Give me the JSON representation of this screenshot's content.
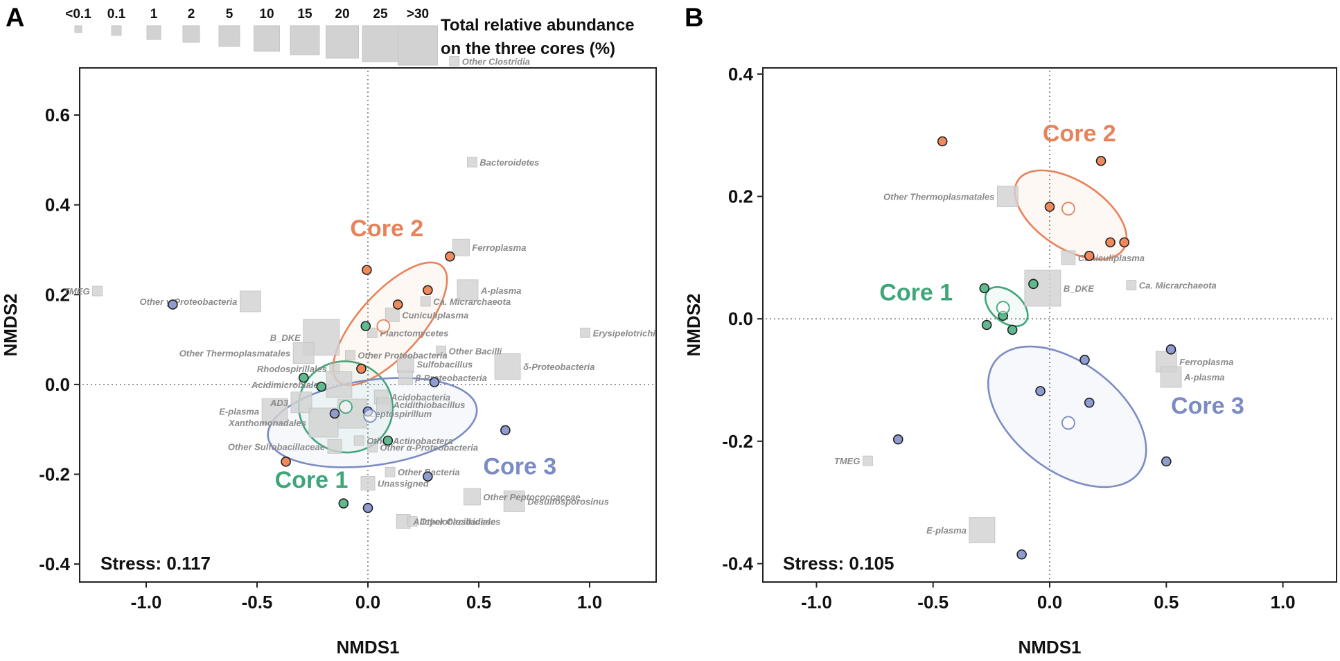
{
  "colors": {
    "core1": "#3fa679",
    "core2": "#e8825a",
    "core3": "#7b8cc4",
    "core1_dot": "#5fbb8f",
    "core2_dot": "#f08a5d",
    "core3_dot": "#8f9ccf",
    "taxon_box": "#d2d2d2",
    "taxon_text": "#8a8a8a"
  },
  "legend": {
    "title_line1": "Total relative abundance",
    "title_line2": "on the three cores (%)",
    "categories": [
      "<0.1",
      "0.1",
      "1",
      "2",
      "5",
      "10",
      "15",
      "20",
      "25",
      ">30"
    ]
  },
  "panels": [
    {
      "letter": "A",
      "stress_label": "Stress: 0.117",
      "xlabel": "NMDS1",
      "ylabel": "NMDS2",
      "xlim": [
        -1.3,
        1.3
      ],
      "ylim": [
        -0.44,
        0.705
      ],
      "xticks": [
        -1.0,
        -0.5,
        0.0,
        0.5,
        1.0
      ],
      "xtick_labels": [
        "-1.0",
        "-0.5",
        "0.0",
        "0.5",
        "1.0"
      ],
      "yticks": [
        0.6,
        0.4,
        0.2,
        0.0,
        -0.2,
        -0.4
      ],
      "ytick_labels": [
        "0.6",
        "0.4",
        "0.2",
        "0.0",
        "-0.2",
        "-0.4"
      ]
    },
    {
      "letter": "B",
      "stress_label": "Stress: 0.105",
      "xlabel": "NMDS1",
      "ylabel": "NMDS2",
      "xlim": [
        -1.23,
        1.23
      ],
      "ylim": [
        -0.43,
        0.41
      ],
      "xticks": [
        -1.0,
        -0.5,
        0.0,
        0.5,
        1.0
      ],
      "xtick_labels": [
        "-1.0",
        "-0.5",
        "0.0",
        "0.5",
        "1.0"
      ],
      "yticks": [
        0.4,
        0.2,
        0.0,
        -0.2,
        -0.4
      ],
      "ytick_labels": [
        "0.4",
        "0.2",
        "0.0",
        "-0.2",
        "-0.4"
      ]
    }
  ],
  "chart_data": [
    {
      "type": "scatter",
      "title": "A",
      "xlabel": "NMDS1",
      "ylabel": "NMDS2",
      "xlim": [
        -1.3,
        1.3
      ],
      "ylim": [
        -0.44,
        0.705
      ],
      "stress": 0.117,
      "cores": [
        {
          "name": "Core 1",
          "color_key": "core1",
          "samples": [
            [
              -0.29,
              0.015
            ],
            [
              -0.21,
              -0.005
            ],
            [
              -0.01,
              0.13
            ],
            [
              0.09,
              -0.125
            ],
            [
              -0.11,
              -0.265
            ]
          ],
          "centroid": [
            -0.1,
            -0.05
          ],
          "ellipse": {
            "cx": -0.1,
            "cy": -0.05,
            "rx": 0.205,
            "ry": 0.105,
            "angle_deg": 72
          },
          "label_pos": [
            -0.42,
            -0.23
          ]
        },
        {
          "name": "Core 2",
          "color_key": "core2",
          "samples": [
            [
              -0.005,
              0.255
            ],
            [
              0.37,
              0.285
            ],
            [
              0.27,
              0.21
            ],
            [
              0.135,
              0.178
            ],
            [
              -0.03,
              0.035
            ],
            [
              -0.37,
              -0.172
            ]
          ],
          "centroid": [
            0.07,
            0.13
          ],
          "ellipse": {
            "cx": 0.1,
            "cy": 0.135,
            "rx": 0.35,
            "ry": 0.07,
            "angle_deg": 48
          },
          "label_pos": [
            -0.08,
            0.33
          ]
        },
        {
          "name": "Core 3",
          "color_key": "core3",
          "samples": [
            [
              -0.88,
              0.178
            ],
            [
              -0.15,
              -0.065
            ],
            [
              0.0,
              -0.06
            ],
            [
              0.3,
              0.005
            ],
            [
              0.62,
              -0.102
            ],
            [
              0.27,
              -0.205
            ],
            [
              0.0,
              -0.275
            ]
          ],
          "centroid": [
            0.01,
            -0.07
          ],
          "ellipse": {
            "cx": 0.02,
            "cy": -0.085,
            "rx": 0.475,
            "ry": 0.095,
            "angle_deg": 8
          },
          "label_pos": [
            0.52,
            -0.2
          ]
        }
      ],
      "taxa": [
        {
          "name": "Other Clostridia",
          "x": 0.39,
          "y": 0.72,
          "size": "0.1"
        },
        {
          "name": "Bacteroidetes",
          "x": 0.47,
          "y": 0.495,
          "size": "0.1"
        },
        {
          "name": "Ferroplasma",
          "x": 0.42,
          "y": 0.305,
          "size": "2"
        },
        {
          "name": "A-plasma",
          "x": 0.45,
          "y": 0.21,
          "size": "5"
        },
        {
          "name": "Ca. Micrarchaeota",
          "x": 0.26,
          "y": 0.185,
          "size": "0.1"
        },
        {
          "name": "Cuniculiplasma",
          "x": 0.11,
          "y": 0.155,
          "size": "1"
        },
        {
          "name": "Planctomycetes",
          "x": 0.02,
          "y": 0.115,
          "size": "0.1"
        },
        {
          "name": "Erysipelotrichi",
          "x": 0.98,
          "y": 0.115,
          "size": "0.1"
        },
        {
          "name": "TMEG",
          "x": -1.22,
          "y": 0.208,
          "size": "0.1"
        },
        {
          "name": "Other γ-Proteobacteria",
          "x": -0.53,
          "y": 0.185,
          "size": "5"
        },
        {
          "name": "B_DKE",
          "x": -0.21,
          "y": 0.105,
          "size": "25"
        },
        {
          "name": "Other Thermoplasmatales",
          "x": -0.29,
          "y": 0.07,
          "size": "5"
        },
        {
          "name": "Other Bacilli",
          "x": 0.33,
          "y": 0.075,
          "size": "0.1"
        },
        {
          "name": "Other Proteobacteria",
          "x": -0.08,
          "y": 0.065,
          "size": "0.1"
        },
        {
          "name": "Sulfobacillus",
          "x": 0.17,
          "y": 0.045,
          "size": "2"
        },
        {
          "name": "δ-Proteobacteria",
          "x": 0.63,
          "y": 0.04,
          "size": "10"
        },
        {
          "name": "Rhodospirillales",
          "x": -0.15,
          "y": 0.035,
          "size": "0.1"
        },
        {
          "name": "β-Proteobacteria",
          "x": 0.17,
          "y": 0.015,
          "size": "1"
        },
        {
          "name": "Acidimicrobiales",
          "x": -0.13,
          "y": 0.0,
          "size": "10"
        },
        {
          "name": "Acidobacteria",
          "x": 0.06,
          "y": -0.028,
          "size": "1"
        },
        {
          "name": "Acidithiobacillus",
          "x": 0.07,
          "y": -0.045,
          "size": "1"
        },
        {
          "name": "AD3",
          "x": -0.3,
          "y": -0.04,
          "size": "5"
        },
        {
          "name": "E-plasma",
          "x": -0.42,
          "y": -0.06,
          "size": "10"
        },
        {
          "name": "Leptospirillum",
          "x": -0.07,
          "y": -0.065,
          "size": "15"
        },
        {
          "name": "Xanthomonadales",
          "x": -0.2,
          "y": -0.085,
          "size": "15"
        },
        {
          "name": "Other Actinobactera",
          "x": -0.04,
          "y": -0.125,
          "size": "0.1"
        },
        {
          "name": "Other Sulfobacillaceae",
          "x": -0.15,
          "y": -0.138,
          "size": "1"
        },
        {
          "name": "Other α-Proteobacteria",
          "x": 0.02,
          "y": -0.14,
          "size": "0.1"
        },
        {
          "name": "Other Bacteria",
          "x": 0.1,
          "y": -0.195,
          "size": "0.1"
        },
        {
          "name": "Unassigned",
          "x": 0.0,
          "y": -0.22,
          "size": "1"
        },
        {
          "name": "Other Peptococcaceae",
          "x": 0.47,
          "y": -0.25,
          "size": "2"
        },
        {
          "name": "Desulfosporosinus",
          "x": 0.66,
          "y": -0.26,
          "size": "5"
        },
        {
          "name": "Alicyclobacillaceae",
          "x": 0.16,
          "y": -0.305,
          "size": "1"
        },
        {
          "name": "Other Clostridiales",
          "x": 0.2,
          "y": -0.305,
          "size": "0.1"
        }
      ]
    },
    {
      "type": "scatter",
      "title": "B",
      "xlabel": "NMDS1",
      "ylabel": "NMDS2",
      "xlim": [
        -1.23,
        1.23
      ],
      "ylim": [
        -0.43,
        0.41
      ],
      "stress": 0.105,
      "cores": [
        {
          "name": "Core 1",
          "color_key": "core1",
          "samples": [
            [
              -0.28,
              0.05
            ],
            [
              -0.07,
              0.057
            ],
            [
              -0.2,
              0.005
            ],
            [
              -0.27,
              -0.01
            ],
            [
              -0.16,
              -0.018
            ]
          ],
          "centroid": [
            -0.2,
            0.018
          ],
          "ellipse": {
            "cx": -0.185,
            "cy": 0.02,
            "rx": 0.065,
            "ry": 0.04,
            "angle_deg": 50
          },
          "label_pos": [
            -0.73,
            0.03
          ]
        },
        {
          "name": "Core 2",
          "color_key": "core2",
          "samples": [
            [
              -0.46,
              0.29
            ],
            [
              0.22,
              0.258
            ],
            [
              0.0,
              0.183
            ],
            [
              0.17,
              0.103
            ],
            [
              0.26,
              0.125
            ],
            [
              0.32,
              0.125
            ]
          ],
          "centroid": [
            0.08,
            0.18
          ],
          "ellipse": {
            "cx": 0.09,
            "cy": 0.17,
            "rx": 0.27,
            "ry": 0.055,
            "angle_deg": -33
          },
          "label_pos": [
            -0.03,
            0.29
          ]
        },
        {
          "name": "Core 3",
          "color_key": "core3",
          "samples": [
            [
              0.52,
              -0.05
            ],
            [
              0.15,
              -0.067
            ],
            [
              -0.04,
              -0.118
            ],
            [
              0.17,
              -0.137
            ],
            [
              -0.65,
              -0.197
            ],
            [
              0.5,
              -0.233
            ],
            [
              -0.12,
              -0.385
            ]
          ],
          "centroid": [
            0.08,
            -0.17
          ],
          "ellipse": {
            "cx": 0.075,
            "cy": -0.16,
            "rx": 0.39,
            "ry": 0.088,
            "angle_deg": -38
          },
          "label_pos": [
            0.52,
            -0.155
          ]
        }
      ],
      "taxa": [
        {
          "name": "Other Thermoplasmatales",
          "x": -0.18,
          "y": 0.2,
          "size": "5"
        },
        {
          "name": "Cuniculiplasma",
          "x": 0.08,
          "y": 0.1,
          "size": "1"
        },
        {
          "name": "Ca. Micrarchaeota",
          "x": 0.35,
          "y": 0.055,
          "size": "0.1"
        },
        {
          "name": "B_DKE",
          "x": -0.03,
          "y": 0.05,
          "size": "25"
        },
        {
          "name": "Ferroplasma",
          "x": 0.5,
          "y": -0.07,
          "size": "5"
        },
        {
          "name": "A-plasma",
          "x": 0.52,
          "y": -0.095,
          "size": "5"
        },
        {
          "name": "TMEG",
          "x": -0.78,
          "y": -0.232,
          "size": "0.1"
        },
        {
          "name": "E-plasma",
          "x": -0.29,
          "y": -0.345,
          "size": "10"
        }
      ]
    }
  ]
}
